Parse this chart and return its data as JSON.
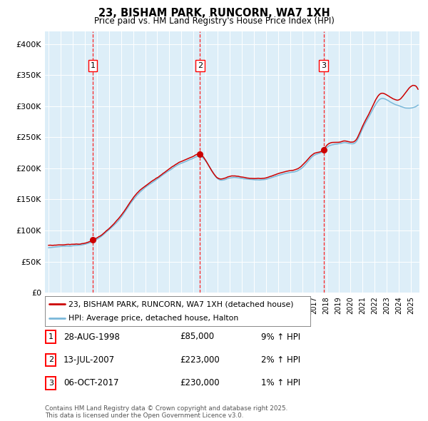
{
  "title": "23, BISHAM PARK, RUNCORN, WA7 1XH",
  "subtitle": "Price paid vs. HM Land Registry's House Price Index (HPI)",
  "legend_line1": "23, BISHAM PARK, RUNCORN, WA7 1XH (detached house)",
  "legend_line2": "HPI: Average price, detached house, Halton",
  "hpi_color": "#7ab8d9",
  "price_color": "#cc0000",
  "plot_bg": "#ddeef8",
  "sale_points": [
    {
      "label": "1",
      "date": "28-AUG-1998",
      "price": 85000,
      "pct": "9% ↑ HPI",
      "x_year": 1998.65
    },
    {
      "label": "2",
      "date": "13-JUL-2007",
      "price": 223000,
      "pct": "2% ↑ HPI",
      "x_year": 2007.53
    },
    {
      "label": "3",
      "date": "06-OCT-2017",
      "price": 230000,
      "pct": "1% ↑ HPI",
      "x_year": 2017.76
    }
  ],
  "ylim": [
    0,
    420000
  ],
  "yticks": [
    0,
    50000,
    100000,
    150000,
    200000,
    250000,
    300000,
    350000,
    400000
  ],
  "ytick_labels": [
    "£0",
    "£50K",
    "£100K",
    "£150K",
    "£200K",
    "£250K",
    "£300K",
    "£350K",
    "£400K"
  ],
  "footer": "Contains HM Land Registry data © Crown copyright and database right 2025.\nThis data is licensed under the Open Government Licence v3.0.",
  "xlim_start": 1994.7,
  "xlim_end": 2025.7
}
